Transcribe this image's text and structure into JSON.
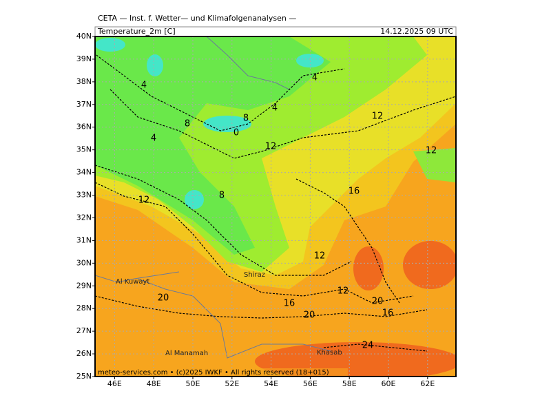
{
  "header": {
    "title": "CETA — Inst. f. Wetter— und Klimafolgenanalysen —",
    "parameter": "Temperature_2m [C]",
    "valid_time": "14.12.2025 09 UTC"
  },
  "map": {
    "lonlim": [
      45,
      63.45
    ],
    "latlim": [
      25,
      40
    ],
    "lat_ticks": [
      {
        "value": 25,
        "label": "25N"
      },
      {
        "value": 26,
        "label": "26N"
      },
      {
        "value": 27,
        "label": "27N"
      },
      {
        "value": 28,
        "label": "28N"
      },
      {
        "value": 29,
        "label": "29N"
      },
      {
        "value": 30,
        "label": "30N"
      },
      {
        "value": 31,
        "label": "31N"
      },
      {
        "value": 32,
        "label": "32N"
      },
      {
        "value": 33,
        "label": "33N"
      },
      {
        "value": 34,
        "label": "34N"
      },
      {
        "value": 35,
        "label": "35N"
      },
      {
        "value": 36,
        "label": "36N"
      },
      {
        "value": 37,
        "label": "37N"
      },
      {
        "value": 38,
        "label": "38N"
      },
      {
        "value": 39,
        "label": "39N"
      },
      {
        "value": 40,
        "label": "40N"
      }
    ],
    "lon_ticks": [
      {
        "value": 46,
        "label": "46E"
      },
      {
        "value": 48,
        "label": "48E"
      },
      {
        "value": 50,
        "label": "50E"
      },
      {
        "value": 52,
        "label": "52E"
      },
      {
        "value": 54,
        "label": "54E"
      },
      {
        "value": 56,
        "label": "56E"
      },
      {
        "value": 58,
        "label": "58E"
      },
      {
        "value": 60,
        "label": "60E"
      },
      {
        "value": 62,
        "label": "62E"
      }
    ],
    "contour_labels": [
      4,
      4,
      4,
      4,
      8,
      8,
      0,
      12,
      12,
      12,
      16,
      8,
      12,
      12,
      12,
      20,
      16,
      20,
      16,
      20,
      24
    ],
    "places": [
      "Al Kuwayt",
      "Al Manamah",
      "Shiraz",
      "Khasab"
    ]
  },
  "footer": "meteo-services.com • (c)2025 IWKF • All rights reserved (18+015)"
}
